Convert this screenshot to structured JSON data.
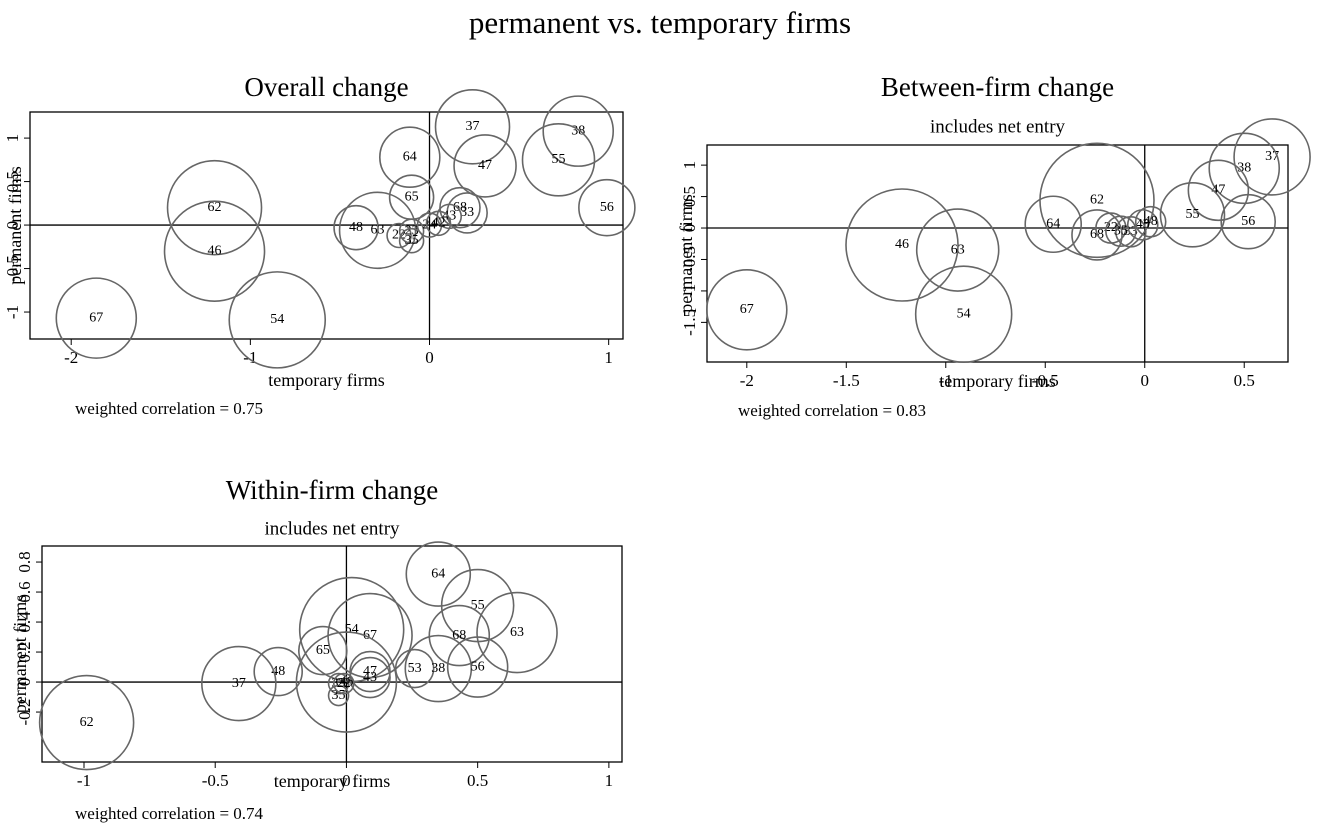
{
  "title": "permanent vs. temporary firms",
  "chart_data": [
    {
      "type": "scatter",
      "title": "Overall change",
      "x_label": "temporary firms",
      "y_label": "permanent firms",
      "footnote": "weighted correlation = 0.75",
      "labels": [
        "37",
        "38",
        "47",
        "55",
        "64",
        "56",
        "62",
        "46",
        "65",
        "68",
        "33",
        "43",
        "48",
        "63",
        "54",
        "67",
        "22",
        "23",
        "24",
        "42",
        "35"
      ],
      "x": [
        0.24,
        0.83,
        0.31,
        0.72,
        -0.11,
        0.99,
        -1.2,
        -1.2,
        -0.1,
        0.17,
        0.21,
        0.11,
        -0.41,
        -0.29,
        -0.85,
        -1.86,
        -0.17,
        -0.1,
        0.0,
        0.05,
        -0.1
      ],
      "y": [
        1.13,
        1.08,
        0.68,
        0.75,
        0.78,
        0.2,
        0.2,
        -0.3,
        0.32,
        0.2,
        0.14,
        0.1,
        -0.03,
        -0.06,
        -1.09,
        -1.07,
        -0.12,
        -0.07,
        0.0,
        0.02,
        -0.18
      ],
      "sizes": [
        3.7,
        3.5,
        3.1,
        3.6,
        3.0,
        2.8,
        4.7,
        5.0,
        2.2,
        2.0,
        2.0,
        1.2,
        2.2,
        3.8,
        4.8,
        4.0,
        1.2,
        1.2,
        1.2,
        1.2,
        1.2
      ],
      "color": "#666666",
      "xlim": [
        -2.23,
        1.08
      ],
      "ylim": [
        -1.31,
        1.3
      ],
      "xticks": [
        -2.0,
        -1.0,
        0.0,
        1.0
      ],
      "yticks": [
        -1.0,
        -0.5,
        0.0,
        0.5,
        1.0
      ]
    },
    {
      "type": "scatter",
      "title": "Between-firm change",
      "subtitle": "includes net entry",
      "x_label": "temporary firms",
      "y_label": "permanent firms",
      "footnote": "weighted correlation = 0.83",
      "labels": [
        "37",
        "38",
        "47",
        "55",
        "56",
        "62",
        "64",
        "46",
        "63",
        "54",
        "67",
        "68",
        "22",
        "33",
        "43",
        "48",
        "35"
      ],
      "x": [
        0.64,
        0.5,
        0.37,
        0.24,
        0.52,
        -0.24,
        -0.46,
        -1.22,
        -0.94,
        -0.91,
        -2.0,
        -0.24,
        -0.17,
        -0.07,
        -0.01,
        0.03,
        -0.12
      ],
      "y": [
        1.13,
        0.95,
        0.6,
        0.21,
        0.1,
        0.44,
        0.06,
        -0.27,
        -0.35,
        -1.37,
        -1.3,
        -0.11,
        0.0,
        -0.06,
        0.05,
        0.1,
        -0.05
      ],
      "sizes": [
        3.8,
        3.5,
        3.0,
        3.2,
        2.7,
        5.7,
        2.8,
        5.6,
        4.1,
        4.8,
        4.0,
        2.5,
        1.5,
        1.5,
        1.5,
        1.5,
        1.5
      ],
      "color": "#666666",
      "xlim": [
        -2.2,
        0.72
      ],
      "ylim": [
        -2.13,
        1.32
      ],
      "xticks": [
        -2.0,
        -1.5,
        -1.0,
        -0.5,
        0.0,
        0.5
      ],
      "yticks": [
        -1.5,
        -1.0,
        -0.5,
        0.0,
        0.5,
        1.0
      ]
    },
    {
      "type": "scatter",
      "title": "Within-firm change",
      "subtitle": "includes net entry",
      "x_label": "temporary firms",
      "y_label": "permanent firms",
      "footnote": "weighted correlation = 0.74",
      "labels": [
        "64",
        "55",
        "63",
        "68",
        "54",
        "67",
        "65",
        "48",
        "37",
        "53",
        "38",
        "56",
        "62",
        "47",
        "43",
        "46",
        "33",
        "35",
        "22"
      ],
      "x": [
        0.35,
        0.5,
        0.65,
        0.43,
        0.02,
        0.09,
        -0.09,
        -0.26,
        -0.41,
        0.26,
        0.35,
        0.5,
        -0.99,
        0.09,
        0.09,
        0.0,
        -0.03,
        -0.03,
        -0.01
      ],
      "y": [
        0.72,
        0.51,
        0.33,
        0.31,
        0.35,
        0.31,
        0.21,
        0.07,
        -0.01,
        0.09,
        0.09,
        0.1,
        -0.27,
        0.07,
        0.03,
        0.0,
        -0.01,
        -0.09,
        -0.01
      ],
      "sizes": [
        3.2,
        3.6,
        4.0,
        3.0,
        5.2,
        4.2,
        2.4,
        2.4,
        3.7,
        1.9,
        3.3,
        3.0,
        4.7,
        2.0,
        2.0,
        5.0,
        1.0,
        1.0,
        1.0
      ],
      "color": "#666666",
      "xlim": [
        -1.16,
        1.05
      ],
      "ylim": [
        -0.533,
        0.907
      ],
      "xticks": [
        -1.0,
        -0.5,
        0.0,
        0.5,
        1.0
      ],
      "yticks": [
        -0.2,
        0.0,
        0.2,
        0.4,
        0.6,
        0.8
      ]
    }
  ]
}
